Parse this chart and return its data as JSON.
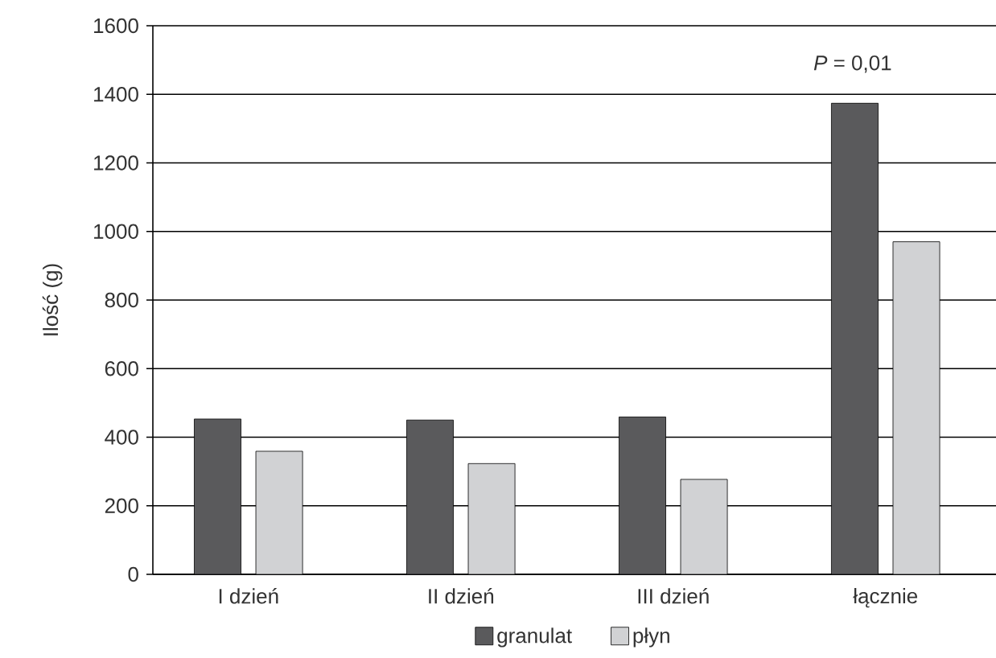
{
  "chart_data": {
    "type": "bar",
    "ylabel": "Ilość (g)",
    "categories": [
      "I dzień",
      "II dzień",
      "III dzień",
      "łącznie"
    ],
    "series": [
      {
        "name": "granulat",
        "color": "#5a5a5c",
        "values": [
          453,
          450,
          459,
          1374
        ]
      },
      {
        "name": "płyn",
        "color": "#d1d2d4",
        "values": [
          359,
          323,
          277,
          970
        ]
      }
    ],
    "ylim": [
      0,
      1600
    ],
    "yticks": [
      0,
      200,
      400,
      600,
      800,
      1000,
      1200,
      1400,
      1600
    ],
    "grid": "y",
    "legend": "bottom",
    "annotations": [
      "*P* = 0,01"
    ]
  }
}
